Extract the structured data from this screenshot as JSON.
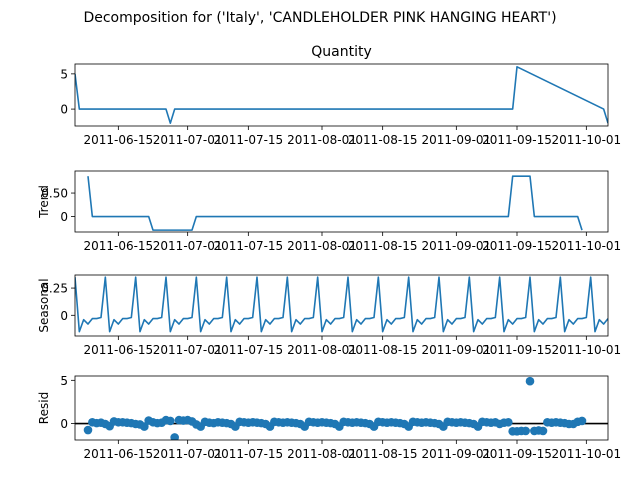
{
  "suptitle": "Decomposition for ('Italy', 'CANDLEHOLDER PINK HANGING HEART')",
  "chart_data": [
    {
      "type": "line",
      "title": "Quantity",
      "ylabel": "",
      "ylim": [
        -2.4,
        6.4
      ],
      "yticks": [
        0,
        5
      ],
      "x_range": [
        "2011-06-05",
        "2011-10-06"
      ],
      "x_ticks": [
        "2011-06-15",
        "2011-07-01",
        "2011-07-15",
        "2011-08-01",
        "2011-08-15",
        "2011-09-01",
        "2011-09-15",
        "2011-10-01"
      ],
      "x": [
        "2011-06-05",
        "2011-06-06",
        "2011-06-26",
        "2011-06-27",
        "2011-06-28",
        "2011-09-13",
        "2011-09-14",
        "2011-09-15",
        "2011-10-05",
        "2011-10-06"
      ],
      "y": [
        5,
        0,
        0,
        -2,
        0,
        0,
        0,
        6,
        0,
        -2
      ],
      "color": "#1f77b4"
    },
    {
      "type": "line",
      "title": "",
      "ylabel": "Trend",
      "ylim": [
        -0.33,
        0.97
      ],
      "yticks": [
        0.0,
        0.5
      ],
      "x_range": [
        "2011-06-05",
        "2011-10-06"
      ],
      "x_ticks": [
        "2011-06-15",
        "2011-07-01",
        "2011-07-15",
        "2011-08-01",
        "2011-08-15",
        "2011-09-01",
        "2011-09-15",
        "2011-10-01"
      ],
      "x": [
        "2011-06-08",
        "2011-06-09",
        "2011-06-22",
        "2011-06-23",
        "2011-06-26",
        "2011-06-27",
        "2011-06-28",
        "2011-07-02",
        "2011-07-03",
        "2011-09-13",
        "2011-09-14",
        "2011-09-18",
        "2011-09-19",
        "2011-09-29",
        "2011-09-30"
      ],
      "y": [
        0.86,
        0.0,
        0.0,
        -0.29,
        -0.29,
        -0.29,
        -0.29,
        -0.29,
        0.0,
        0.0,
        0.86,
        0.86,
        0.0,
        0.0,
        -0.29
      ],
      "color": "#1f77b4"
    },
    {
      "type": "line",
      "title": "",
      "ylabel": "Seasonal",
      "ylim": [
        -0.19,
        0.37
      ],
      "yticks": [
        0.0,
        0.25
      ],
      "x_range": [
        "2011-06-05",
        "2011-10-06"
      ],
      "x_ticks": [
        "2011-06-15",
        "2011-07-01",
        "2011-07-15",
        "2011-08-01",
        "2011-08-15",
        "2011-09-01",
        "2011-09-15",
        "2011-10-01"
      ],
      "period_start": "2011-06-05",
      "period_values": [
        0.35,
        -0.15,
        -0.04,
        -0.08,
        -0.03,
        -0.03,
        -0.02
      ],
      "color": "#1f77b4"
    },
    {
      "type": "scatter",
      "title": "",
      "ylabel": "Resid",
      "ylim": [
        -1.9,
        5.5
      ],
      "yticks": [
        0,
        5
      ],
      "x_range": [
        "2011-06-05",
        "2011-10-06"
      ],
      "x_ticks": [
        "2011-06-15",
        "2011-07-01",
        "2011-07-15",
        "2011-08-01",
        "2011-08-15",
        "2011-09-01",
        "2011-09-15",
        "2011-10-01"
      ],
      "baseline": 0,
      "x": [
        "2011-06-08",
        "2011-06-09",
        "2011-06-10",
        "2011-06-11",
        "2011-06-12",
        "2011-06-13",
        "2011-06-14",
        "2011-06-15",
        "2011-06-16",
        "2011-06-17",
        "2011-06-18",
        "2011-06-19",
        "2011-06-20",
        "2011-06-21",
        "2011-06-22",
        "2011-06-23",
        "2011-06-24",
        "2011-06-25",
        "2011-06-26",
        "2011-06-27",
        "2011-06-28",
        "2011-06-29",
        "2011-06-30",
        "2011-07-01",
        "2011-07-02",
        "2011-07-03",
        "2011-07-04",
        "2011-07-05",
        "2011-07-06",
        "2011-07-07",
        "2011-07-08",
        "2011-07-09",
        "2011-07-10",
        "2011-07-11",
        "2011-07-12",
        "2011-07-13",
        "2011-07-14",
        "2011-07-15",
        "2011-07-16",
        "2011-07-17",
        "2011-07-18",
        "2011-07-19",
        "2011-07-20",
        "2011-07-21",
        "2011-07-22",
        "2011-07-23",
        "2011-07-24",
        "2011-07-25",
        "2011-07-26",
        "2011-07-27",
        "2011-07-28",
        "2011-07-29",
        "2011-07-30",
        "2011-07-31",
        "2011-08-01",
        "2011-08-02",
        "2011-08-03",
        "2011-08-04",
        "2011-08-05",
        "2011-08-06",
        "2011-08-07",
        "2011-08-08",
        "2011-08-09",
        "2011-08-10",
        "2011-08-11",
        "2011-08-12",
        "2011-08-13",
        "2011-08-14",
        "2011-08-15",
        "2011-08-16",
        "2011-08-17",
        "2011-08-18",
        "2011-08-19",
        "2011-08-20",
        "2011-08-21",
        "2011-08-22",
        "2011-08-23",
        "2011-08-24",
        "2011-08-25",
        "2011-08-26",
        "2011-08-27",
        "2011-08-28",
        "2011-08-29",
        "2011-08-30",
        "2011-08-31",
        "2011-09-01",
        "2011-09-02",
        "2011-09-03",
        "2011-09-04",
        "2011-09-05",
        "2011-09-06",
        "2011-09-07",
        "2011-09-08",
        "2011-09-09",
        "2011-09-10",
        "2011-09-11",
        "2011-09-12",
        "2011-09-13",
        "2011-09-14",
        "2011-09-15",
        "2011-09-16",
        "2011-09-17",
        "2011-09-18",
        "2011-09-19",
        "2011-09-20",
        "2011-09-21",
        "2011-09-22",
        "2011-09-23",
        "2011-09-24",
        "2011-09-25",
        "2011-09-26",
        "2011-09-27",
        "2011-09-28",
        "2011-09-29",
        "2011-09-30"
      ],
      "y": [
        -0.75,
        0.15,
        0.05,
        0.1,
        -0.05,
        -0.3,
        0.25,
        0.15,
        0.15,
        0.1,
        0.05,
        -0.05,
        -0.1,
        -0.35,
        0.35,
        0.15,
        0.05,
        0.1,
        0.4,
        0.3,
        -1.6,
        0.4,
        0.35,
        0.4,
        0.25,
        -0.1,
        -0.35,
        0.2,
        0.1,
        0.05,
        0.15,
        0.1,
        0.05,
        -0.05,
        -0.35,
        0.2,
        0.15,
        0.1,
        0.15,
        0.1,
        0.05,
        -0.05,
        -0.35,
        0.2,
        0.15,
        0.1,
        0.15,
        0.1,
        0.05,
        -0.05,
        -0.35,
        0.2,
        0.15,
        0.1,
        0.15,
        0.1,
        0.05,
        -0.05,
        -0.35,
        0.2,
        0.15,
        0.1,
        0.15,
        0.1,
        0.05,
        -0.05,
        -0.35,
        0.2,
        0.15,
        0.1,
        0.15,
        0.1,
        0.05,
        -0.05,
        -0.35,
        0.2,
        0.15,
        0.1,
        0.15,
        0.1,
        0.05,
        -0.05,
        -0.35,
        0.2,
        0.15,
        0.1,
        0.15,
        0.1,
        0.05,
        -0.05,
        -0.35,
        0.2,
        0.15,
        0.1,
        0.15,
        -0.05,
        0.1,
        0.15,
        -0.9,
        -0.9,
        -0.85,
        -0.85,
        4.9,
        -0.85,
        -0.8,
        -0.85,
        0.15,
        0.1,
        0.15,
        0.1,
        0.05,
        -0.05,
        -0.05,
        0.2,
        0.3
      ],
      "color": "#1f77b4"
    }
  ]
}
